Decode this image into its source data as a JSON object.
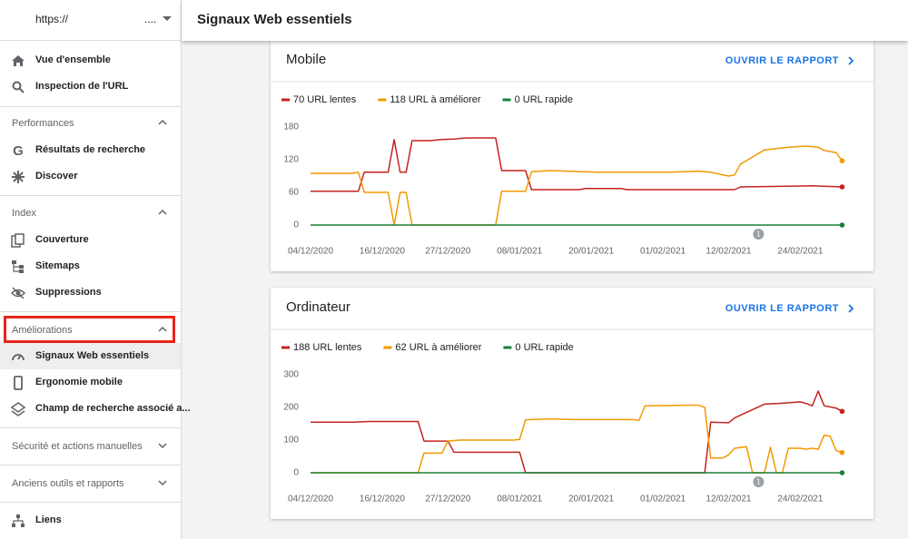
{
  "sidebar": {
    "property": "https://",
    "property_suffix": "....",
    "items": [
      "Vue d'ensemble",
      "Inspection de l'URL"
    ],
    "sections": [
      {
        "title": "Performances",
        "items": [
          "Résultats de recherche",
          "Discover"
        ]
      },
      {
        "title": "Index",
        "items": [
          "Couverture",
          "Sitemaps",
          "Suppressions"
        ]
      },
      {
        "title": "Améliorations",
        "items": [
          "Signaux Web essentiels",
          "Ergonomie mobile",
          "Champ de recherche associé a..."
        ]
      },
      {
        "title": "Sécurité et actions manuelles"
      },
      {
        "title": "Anciens outils et rapports"
      }
    ],
    "footer_item": "Liens"
  },
  "header": {
    "title": "Signaux Web essentiels"
  },
  "chart_data": [
    {
      "type": "line",
      "title": "Mobile",
      "link": "OUVRIR LE RAPPORT",
      "xlim": [
        "2020-12-04",
        "2021-03-04"
      ],
      "xticks": [
        {
          "value": "2020-12-04",
          "label": "04/12/2020"
        },
        {
          "value": "2020-12-16",
          "label": "16/12/2020"
        },
        {
          "value": "2020-12-27",
          "label": "27/12/2020"
        },
        {
          "value": "2021-01-08",
          "label": "08/01/2021"
        },
        {
          "value": "2021-01-20",
          "label": "20/01/2021"
        },
        {
          "value": "2021-02-01",
          "label": "01/02/2021"
        },
        {
          "value": "2021-02-12",
          "label": "12/02/2021"
        },
        {
          "value": "2021-02-24",
          "label": "24/02/2021"
        }
      ],
      "ylim": [
        0,
        180
      ],
      "yticks": [
        0,
        60,
        120,
        180
      ],
      "grid": false,
      "annotations": [
        {
          "x": "2021-02-17",
          "label": "1"
        }
      ],
      "series": [
        {
          "name": "70 URL lentes",
          "color": "#c5221f",
          "x": [
            "2020-12-04",
            "2020-12-12",
            "2020-12-13",
            "2020-12-17",
            "2020-12-18",
            "2020-12-19",
            "2020-12-20",
            "2020-12-21",
            "2020-12-24",
            "2020-12-26",
            "2020-12-28",
            "2020-12-30",
            "2021-01-04",
            "2021-01-05",
            "2021-01-09",
            "2021-01-10",
            "2021-01-18",
            "2021-01-19",
            "2021-01-25",
            "2021-01-26",
            "2021-02-13",
            "2021-02-14",
            "2021-02-26",
            "2021-03-03"
          ],
          "values": [
            62,
            62,
            97,
            97,
            157,
            97,
            97,
            155,
            155,
            157,
            158,
            160,
            160,
            100,
            100,
            65,
            65,
            67,
            67,
            65,
            65,
            70,
            72,
            70
          ]
        },
        {
          "name": "118 URL à améliorer",
          "color": "#f29900",
          "x": [
            "2020-12-04",
            "2020-12-11",
            "2020-12-12",
            "2020-12-13",
            "2020-12-17",
            "2020-12-18",
            "2020-12-19",
            "2020-12-20",
            "2020-12-21",
            "2021-01-04",
            "2021-01-05",
            "2021-01-09",
            "2021-01-10",
            "2021-01-13",
            "2021-01-21",
            "2021-02-02",
            "2021-02-07",
            "2021-02-09",
            "2021-02-12",
            "2021-02-13",
            "2021-02-14",
            "2021-02-16",
            "2021-02-18",
            "2021-02-22",
            "2021-02-25",
            "2021-02-27",
            "2021-02-28",
            "2021-03-02",
            "2021-03-03"
          ],
          "values": [
            95,
            95,
            97,
            60,
            60,
            0,
            60,
            60,
            0,
            0,
            62,
            62,
            98,
            100,
            97,
            97,
            99,
            97,
            90,
            92,
            112,
            125,
            138,
            143,
            145,
            143,
            137,
            133,
            118
          ]
        },
        {
          "name": "0 URL rapide",
          "color": "#188038",
          "x": [
            "2020-12-04",
            "2021-03-03"
          ],
          "values": [
            0,
            0
          ]
        }
      ]
    },
    {
      "type": "line",
      "title": "Ordinateur",
      "link": "OUVRIR LE RAPPORT",
      "xlim": [
        "2020-12-04",
        "2021-03-04"
      ],
      "xticks": [
        {
          "value": "2020-12-04",
          "label": "04/12/2020"
        },
        {
          "value": "2020-12-16",
          "label": "16/12/2020"
        },
        {
          "value": "2020-12-27",
          "label": "27/12/2020"
        },
        {
          "value": "2021-01-08",
          "label": "08/01/2021"
        },
        {
          "value": "2021-01-20",
          "label": "20/01/2021"
        },
        {
          "value": "2021-02-01",
          "label": "01/02/2021"
        },
        {
          "value": "2021-02-12",
          "label": "12/02/2021"
        },
        {
          "value": "2021-02-24",
          "label": "24/02/2021"
        }
      ],
      "ylim": [
        0,
        300
      ],
      "yticks": [
        0,
        100,
        200,
        300
      ],
      "grid": false,
      "annotations": [
        {
          "x": "2021-02-17",
          "label": "1"
        }
      ],
      "series": [
        {
          "name": "188 URL lentes",
          "color": "#c5221f",
          "x": [
            "2020-12-04",
            "2020-12-11",
            "2020-12-14",
            "2020-12-22",
            "2020-12-23",
            "2020-12-27",
            "2020-12-28",
            "2021-01-08",
            "2021-01-09",
            "2021-02-08",
            "2021-02-09",
            "2021-02-12",
            "2021-02-13",
            "2021-02-15",
            "2021-02-18",
            "2021-02-21",
            "2021-02-24",
            "2021-02-25",
            "2021-02-26",
            "2021-02-27",
            "2021-02-28",
            "2021-03-02",
            "2021-03-03"
          ],
          "values": [
            155,
            155,
            157,
            157,
            97,
            97,
            63,
            63,
            0,
            0,
            155,
            153,
            168,
            185,
            210,
            213,
            217,
            212,
            205,
            250,
            205,
            198,
            188
          ]
        },
        {
          "name": "62 URL à améliorer",
          "color": "#f29900",
          "x": [
            "2020-12-04",
            "2020-12-22",
            "2020-12-23",
            "2020-12-26",
            "2020-12-27",
            "2020-12-29",
            "2021-01-07",
            "2021-01-08",
            "2021-01-09",
            "2021-01-13",
            "2021-01-17",
            "2021-01-27",
            "2021-01-28",
            "2021-01-29",
            "2021-02-07",
            "2021-02-08",
            "2021-02-09",
            "2021-02-11",
            "2021-02-12",
            "2021-02-13",
            "2021-02-15",
            "2021-02-16",
            "2021-02-18",
            "2021-02-19",
            "2021-02-20",
            "2021-02-21",
            "2021-02-22",
            "2021-02-24",
            "2021-02-25",
            "2021-02-26",
            "2021-02-27",
            "2021-02-28",
            "2021-03-01",
            "2021-03-02",
            "2021-03-03"
          ],
          "values": [
            0,
            0,
            60,
            60,
            97,
            100,
            100,
            102,
            162,
            165,
            163,
            163,
            160,
            205,
            207,
            200,
            45,
            45,
            55,
            75,
            80,
            0,
            0,
            78,
            0,
            0,
            75,
            75,
            72,
            75,
            72,
            115,
            112,
            68,
            62
          ]
        },
        {
          "name": "0 URL rapide",
          "color": "#188038",
          "x": [
            "2020-12-04",
            "2021-03-03"
          ],
          "values": [
            0,
            0
          ]
        }
      ]
    }
  ]
}
